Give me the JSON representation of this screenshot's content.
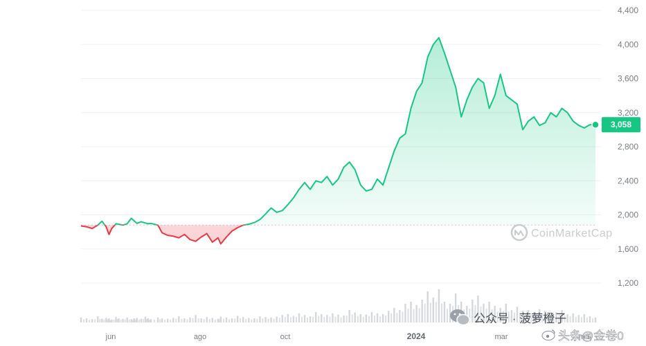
{
  "chart_data": {
    "type": "line",
    "x_ticks": [
      "jun",
      "ago",
      "oct",
      "2024",
      "mar",
      "may"
    ],
    "y_ticks": [
      "4,400",
      "4,000",
      "3,600",
      "3,200",
      "2,800",
      "2,400",
      "2,000",
      "1,600",
      "1,200"
    ],
    "ylim": [
      1200,
      4400
    ],
    "baseline": 1880,
    "current_price": 3058,
    "current_price_label": "3,058",
    "x": [
      0,
      4,
      8,
      12,
      15,
      18,
      20,
      22,
      25,
      27,
      30,
      33,
      36,
      38,
      40,
      43,
      46,
      48,
      50,
      55,
      58,
      62,
      66,
      70,
      74,
      78,
      82,
      86,
      90,
      94,
      98,
      100,
      104,
      108,
      112,
      116,
      120,
      124,
      128,
      132,
      136,
      140,
      144,
      148,
      152,
      156,
      160,
      164,
      168,
      172,
      176,
      180,
      184,
      188,
      192,
      196,
      200,
      204,
      208,
      212,
      216,
      220,
      224,
      228,
      232,
      236,
      240,
      244,
      248,
      252,
      256,
      260,
      264,
      268,
      272,
      276,
      280,
      284,
      288,
      292,
      296,
      300,
      304,
      308,
      312,
      316,
      320,
      324,
      328,
      332,
      336,
      340,
      344,
      348,
      352,
      356,
      360,
      364,
      368
    ],
    "values": [
      1870,
      1860,
      1840,
      1880,
      1925,
      1860,
      1770,
      1840,
      1895,
      1890,
      1880,
      1895,
      1960,
      1930,
      1900,
      1920,
      1905,
      1895,
      1900,
      1880,
      1790,
      1760,
      1750,
      1730,
      1770,
      1710,
      1690,
      1740,
      1780,
      1680,
      1730,
      1660,
      1740,
      1810,
      1850,
      1880,
      1890,
      1910,
      1945,
      2010,
      2080,
      2030,
      2050,
      2120,
      2200,
      2300,
      2380,
      2300,
      2400,
      2380,
      2450,
      2350,
      2420,
      2560,
      2620,
      2530,
      2350,
      2280,
      2300,
      2420,
      2350,
      2550,
      2750,
      2900,
      2950,
      3250,
      3450,
      3550,
      3850,
      4000,
      4080,
      3900,
      3700,
      3500,
      3150,
      3350,
      3500,
      3600,
      3550,
      3250,
      3400,
      3650,
      3400,
      3350,
      3300,
      3000,
      3100,
      3150,
      3050,
      3080,
      3200,
      3150,
      3250,
      3200,
      3100,
      3050,
      3020,
      3058,
      3058
    ],
    "volume": [
      0.12,
      0.1,
      0.08,
      0.15,
      0.09,
      0.11,
      0.1,
      0.07,
      0.13,
      0.1,
      0.09,
      0.12,
      0.08,
      0.1,
      0.11,
      0.09,
      0.14,
      0.1,
      0.08,
      0.12,
      0.1,
      0.09,
      0.11,
      0.15,
      0.1,
      0.12,
      0.18,
      0.1,
      0.13,
      0.11,
      0.09,
      0.14,
      0.12,
      0.1,
      0.16,
      0.13,
      0.11,
      0.1,
      0.15,
      0.13,
      0.12,
      0.14,
      0.18,
      0.2,
      0.16,
      0.22,
      0.18,
      0.15,
      0.25,
      0.2,
      0.18,
      0.22,
      0.19,
      0.17,
      0.3,
      0.24,
      0.2,
      0.19,
      0.25,
      0.22,
      0.2,
      0.28,
      0.35,
      0.3,
      0.45,
      0.5,
      0.42,
      0.55,
      0.75,
      0.6,
      0.8,
      0.5,
      0.45,
      0.7,
      0.5,
      0.4,
      0.55,
      0.65,
      0.45,
      0.5,
      0.4,
      0.35,
      0.45,
      0.3,
      0.38,
      0.28,
      0.3,
      0.25,
      0.32,
      0.28,
      0.22,
      0.25,
      0.3,
      0.2,
      0.22,
      0.18,
      0.2,
      0.15,
      0.12
    ]
  },
  "watermark": {
    "brand": "CoinMarketCap"
  },
  "credit": {
    "text": "公众号 · 菠萝橙子"
  },
  "weibo": {
    "text": "头条@金卷0"
  },
  "colors": {
    "up": "#16c784",
    "down": "#ea3943",
    "price_tag": "#16c784"
  }
}
